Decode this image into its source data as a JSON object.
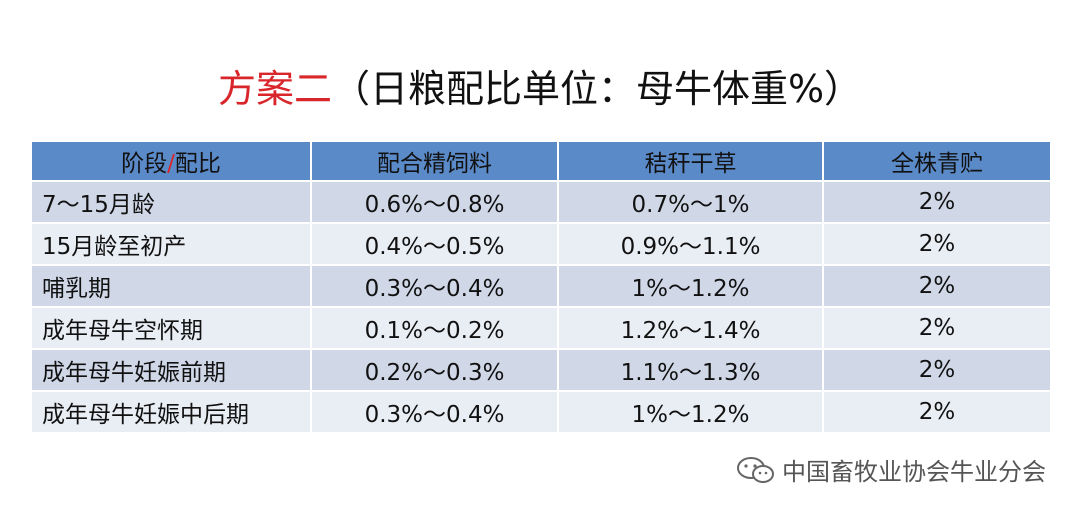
{
  "title": {
    "main": "方案二",
    "sub": "（日粮配比单位：母牛体重%）"
  },
  "table": {
    "header": [
      [
        "阶段",
        "/",
        "配比"
      ],
      [
        "配合精饲料"
      ],
      [
        "秸秆干草"
      ],
      [
        "全株青贮"
      ]
    ],
    "rows": [
      [
        "7～15月龄",
        "0.6%～0.8%",
        "0.7%～1%",
        "2%"
      ],
      [
        "15月龄至初产",
        "0.4%～0.5%",
        "0.9%～1.1%",
        "2%"
      ],
      [
        "哺乳期",
        "0.3%～0.4%",
        "1%～1.2%",
        "2%"
      ],
      [
        "成年母牛空怀期",
        "0.1%～0.2%",
        "1.2%～1.4%",
        "2%"
      ],
      [
        "成年母牛妊娠前期",
        "0.2%～0.3%",
        "1.1%～1.3%",
        "2%"
      ],
      [
        "成年母牛妊娠中后期",
        "0.3%～0.4%",
        "1%～1.2%",
        "2%"
      ]
    ]
  },
  "watermark": "中国畜牧业协会牛业分会"
}
